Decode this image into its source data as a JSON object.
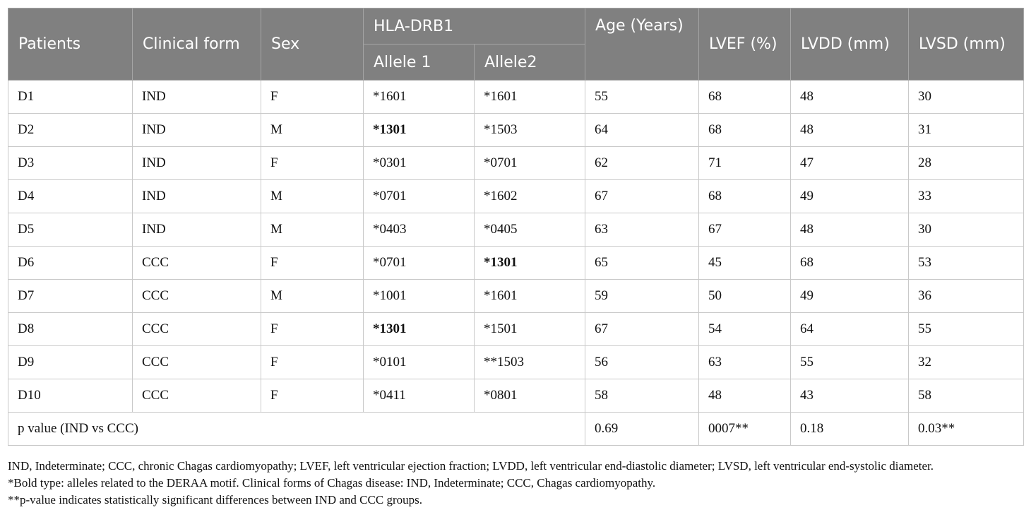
{
  "headers": {
    "patients": "Patients",
    "clinical_form": "Clinical form",
    "sex": "Sex",
    "hla": "HLA-DRB1",
    "allele1": "Allele 1",
    "allele2": "Allele2",
    "age": "Age (Years)",
    "lvef": "LVEF (%)",
    "lvdd": "LVDD (mm)",
    "lvsd": "LVSD (mm)"
  },
  "rows": [
    {
      "patient": "D1",
      "form": "IND",
      "sex": "F",
      "allele1": "*1601",
      "allele1_bold": false,
      "allele2": "*1601",
      "allele2_bold": false,
      "age": "55",
      "lvef": "68",
      "lvdd": "48",
      "lvsd": "30"
    },
    {
      "patient": "D2",
      "form": "IND",
      "sex": "M",
      "allele1": "*1301",
      "allele1_bold": true,
      "allele2": "*1503",
      "allele2_bold": false,
      "age": "64",
      "lvef": "68",
      "lvdd": "48",
      "lvsd": "31"
    },
    {
      "patient": "D3",
      "form": "IND",
      "sex": "F",
      "allele1": "*0301",
      "allele1_bold": false,
      "allele2": "*0701",
      "allele2_bold": false,
      "age": "62",
      "lvef": "71",
      "lvdd": "47",
      "lvsd": "28"
    },
    {
      "patient": "D4",
      "form": "IND",
      "sex": "M",
      "allele1": "*0701",
      "allele1_bold": false,
      "allele2": "*1602",
      "allele2_bold": false,
      "age": "67",
      "lvef": "68",
      "lvdd": "49",
      "lvsd": "33"
    },
    {
      "patient": "D5",
      "form": "IND",
      "sex": "M",
      "allele1": "*0403",
      "allele1_bold": false,
      "allele2": "*0405",
      "allele2_bold": false,
      "age": "63",
      "lvef": "67",
      "lvdd": "48",
      "lvsd": "30"
    },
    {
      "patient": "D6",
      "form": "CCC",
      "sex": "F",
      "allele1": "*0701",
      "allele1_bold": false,
      "allele2": "*1301",
      "allele2_bold": true,
      "age": "65",
      "lvef": "45",
      "lvdd": "68",
      "lvsd": "53"
    },
    {
      "patient": "D7",
      "form": "CCC",
      "sex": "M",
      "allele1": "*1001",
      "allele1_bold": false,
      "allele2": "*1601",
      "allele2_bold": false,
      "age": "59",
      "lvef": "50",
      "lvdd": "49",
      "lvsd": "36"
    },
    {
      "patient": "D8",
      "form": "CCC",
      "sex": "F",
      "allele1": "*1301",
      "allele1_bold": true,
      "allele2": "*1501",
      "allele2_bold": false,
      "age": "67",
      "lvef": "54",
      "lvdd": "64",
      "lvsd": "55"
    },
    {
      "patient": "D9",
      "form": "CCC",
      "sex": "F",
      "allele1": "*0101",
      "allele1_bold": false,
      "allele2": "**1503",
      "allele2_bold": false,
      "age": "56",
      "lvef": "63",
      "lvdd": "55",
      "lvsd": "32"
    },
    {
      "patient": "D10",
      "form": "CCC",
      "sex": "F",
      "allele1": "*0411",
      "allele1_bold": false,
      "allele2": "*0801",
      "allele2_bold": false,
      "age": "58",
      "lvef": "48",
      "lvdd": "43",
      "lvsd": "58"
    }
  ],
  "pvalue_row": {
    "label": "p value (IND vs CCC)",
    "age": "0.69",
    "lvef": "0007**",
    "lvdd": "0.18",
    "lvsd": "0.03**"
  },
  "footnotes": [
    "IND, Indeterminate; CCC, chronic Chagas cardiomyopathy; LVEF, left ventricular ejection fraction; LVDD, left ventricular end-diastolic diameter; LVSD, left ventricular end-systolic diameter.",
    "*Bold type: alleles related to the DERAA motif. Clinical forms of Chagas disease: IND, Indeterminate; CCC, Chagas cardiomyopathy.",
    "**p-value indicates statistically significant differences between IND and CCC groups."
  ],
  "colors": {
    "header_bg": "#808080",
    "header_text": "#ffffff",
    "border": "#c9c9c9"
  }
}
